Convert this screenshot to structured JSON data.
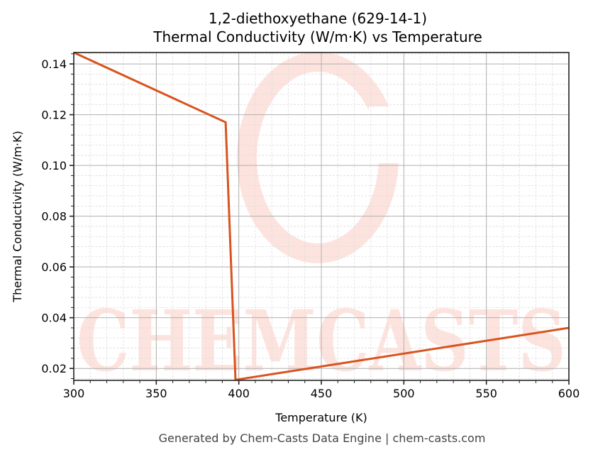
{
  "title_line1": "1,2-diethoxyethane (629-14-1)",
  "title_line2": "Thermal Conductivity (W/m·K) vs Temperature",
  "footer": "Generated by Chem-Casts Data Engine | chem-casts.com",
  "watermark": "CHEMCASTS",
  "colors": {
    "line": "#d9531e",
    "watermark": "#fde3de",
    "grid_major": "#b0b0b0",
    "grid_minor": "#dddddd",
    "axis": "#222222"
  },
  "chart_data": {
    "type": "line",
    "title": "1,2-diethoxyethane (629-14-1)\nThermal Conductivity (W/m·K) vs Temperature",
    "xlabel": "Temperature (K)",
    "ylabel": "Thermal Conductivity (W/m·K)",
    "xlim": [
      300,
      600
    ],
    "ylim": [
      0.0153,
      0.1445
    ],
    "xticks": [
      300,
      350,
      400,
      450,
      500,
      550,
      600
    ],
    "xtick_labels": [
      "300",
      "350",
      "400",
      "450",
      "500",
      "550",
      "600"
    ],
    "yticks": [
      0.02,
      0.04,
      0.06,
      0.08,
      0.1,
      0.12,
      0.14
    ],
    "ytick_labels": [
      "0.02",
      "0.04",
      "0.06",
      "0.08",
      "0.10",
      "0.12",
      "0.14"
    ],
    "grid": true,
    "legend": null,
    "series": [
      {
        "name": "Thermal Conductivity",
        "x": [
          300,
          392,
          398,
          600
        ],
        "y": [
          0.1445,
          0.117,
          0.0155,
          0.036
        ]
      }
    ]
  }
}
